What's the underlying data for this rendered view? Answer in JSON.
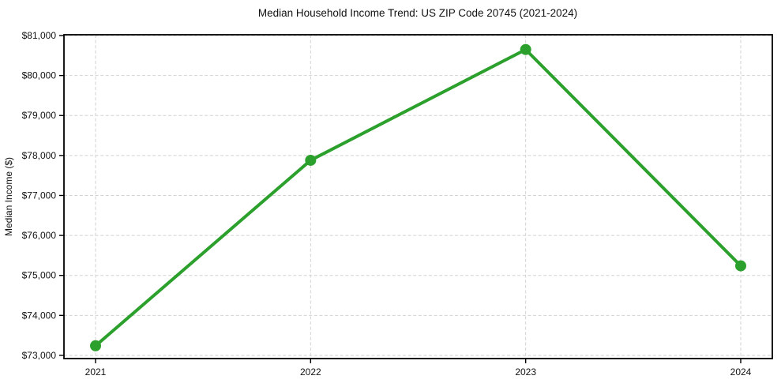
{
  "chart_data": {
    "type": "line",
    "title": "Median Household Income Trend: US ZIP Code 20745 (2021-2024)",
    "xlabel": "",
    "ylabel": "Median Income ($)",
    "categories": [
      "2021",
      "2022",
      "2023",
      "2024"
    ],
    "series": [
      {
        "values": [
          73240,
          77880,
          80650,
          75240
        ],
        "color": "#2ca02c",
        "marker": "circle",
        "line_width": 4,
        "marker_radius": 7
      }
    ],
    "ylim": [
      72920,
      81020
    ],
    "yticks": [
      73000,
      74000,
      75000,
      76000,
      77000,
      78000,
      79000,
      80000,
      81000
    ],
    "ytick_labels": [
      "$73,000",
      "$74,000",
      "$75,000",
      "$76,000",
      "$77,000",
      "$78,000",
      "$79,000",
      "$80,000",
      "$81,000"
    ],
    "grid": true,
    "grid_color": "#d2d2d2",
    "grid_style": "dashed",
    "legend": "none",
    "background": "#ffffff"
  }
}
